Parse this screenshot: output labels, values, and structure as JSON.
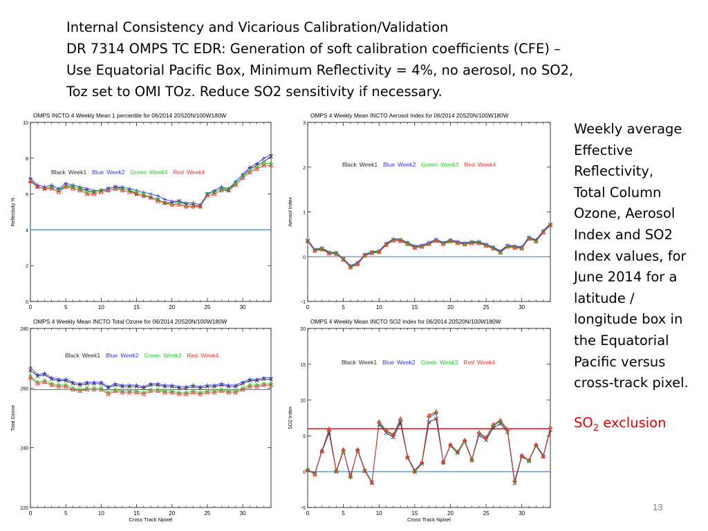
{
  "slide": {
    "title_lines": [
      "Internal Consistency and Vicarious Calibration/Validation",
      "DR 7314 OMPS TC EDR: Generation of soft calibration coefficients (CFE) –",
      "Use Equatorial Pacific Box, Minimum Reflectivity = 4%, no aerosol, no SO2,",
      "Toz set to OMI TOz. Reduce SO2 sensitivity if necessary."
    ],
    "side_lines": [
      "Weekly average",
      "Effective",
      "Reflectivity,",
      "Total Column",
      "Ozone, Aerosol",
      "Index and SO2",
      "Index values, for",
      "June 2014 for a",
      "latitude /",
      "longitude box in",
      "the Equatorial",
      "Pacific versus",
      "cross-track pixel."
    ],
    "so2_prefix": "SO",
    "so2_sub": "2",
    "so2_suffix": " exclusion",
    "page_number": "13"
  },
  "colors": {
    "week1": "#2a2a2a",
    "week2": "#3333ee",
    "week3": "#22cc22",
    "week4": "#ee3333",
    "axis": "#000000",
    "reference_blue": "#3a7ab8",
    "reference_red": "#e02020",
    "slide_red": "#e00000"
  },
  "chart_data": [
    {
      "type": "line",
      "title": "OMPS INCTO 4 Weekly Mean 1 percentile for 06/2014 20S20N/100W180W",
      "xlabel": "",
      "ylabel": "Reflectivity %",
      "xlim": [
        0,
        34
      ],
      "ylim": [
        0,
        10
      ],
      "xticks": [
        "0",
        "5",
        "10",
        "15",
        "20",
        "25",
        "30"
      ],
      "yticks": [
        "0",
        "2",
        "4",
        "6",
        "8",
        "10"
      ],
      "legend": [
        "Black",
        "Week1",
        "Blue",
        "Week2",
        "Green",
        "Week3",
        "Red",
        "Week4"
      ],
      "legend_placement": "top",
      "reference_line": {
        "y": 4,
        "color": "blue"
      },
      "x": [
        0,
        1,
        2,
        3,
        4,
        5,
        6,
        7,
        8,
        9,
        10,
        11,
        12,
        13,
        14,
        15,
        16,
        17,
        18,
        19,
        20,
        21,
        22,
        23,
        24,
        25,
        26,
        27,
        28,
        29,
        30,
        31,
        32,
        33,
        34
      ],
      "series": [
        {
          "values": [
            6.8,
            6.4,
            6.3,
            6.4,
            6.2,
            6.5,
            6.4,
            6.3,
            6.2,
            6.1,
            6.2,
            6.3,
            6.4,
            6.3,
            6.2,
            6.0,
            5.9,
            5.8,
            5.7,
            5.5,
            5.5,
            5.6,
            5.4,
            5.4,
            5.3,
            6.0,
            6.1,
            6.3,
            6.2,
            6.6,
            7.0,
            7.4,
            7.6,
            7.8,
            8.1
          ]
        },
        {
          "values": [
            6.9,
            6.5,
            6.4,
            6.5,
            6.3,
            6.6,
            6.5,
            6.4,
            6.3,
            6.2,
            6.2,
            6.3,
            6.4,
            6.4,
            6.3,
            6.2,
            6.1,
            6.0,
            5.9,
            5.7,
            5.6,
            5.6,
            5.5,
            5.5,
            5.4,
            6.0,
            6.2,
            6.4,
            6.3,
            6.7,
            7.1,
            7.5,
            7.7,
            8.0,
            8.2
          ]
        },
        {
          "values": [
            6.7,
            6.4,
            6.3,
            6.4,
            6.2,
            6.4,
            6.4,
            6.3,
            6.1,
            6.1,
            6.2,
            6.2,
            6.3,
            6.3,
            6.2,
            6.1,
            6.0,
            5.8,
            5.7,
            5.5,
            5.4,
            5.5,
            5.3,
            5.3,
            5.3,
            6.0,
            6.1,
            6.3,
            6.3,
            6.6,
            7.0,
            7.3,
            7.5,
            7.7,
            7.7
          ]
        },
        {
          "values": [
            6.7,
            6.4,
            6.3,
            6.3,
            6.1,
            6.4,
            6.3,
            6.2,
            6.0,
            6.0,
            6.1,
            6.2,
            6.3,
            6.2,
            6.1,
            6.0,
            5.9,
            5.8,
            5.6,
            5.5,
            5.4,
            5.4,
            5.3,
            5.3,
            5.3,
            5.9,
            6.0,
            6.2,
            6.2,
            6.5,
            6.9,
            7.2,
            7.4,
            7.6,
            7.6
          ]
        }
      ]
    },
    {
      "type": "line",
      "title": "OMPS 4 Weekly Mean INCTO Aerosol Index for 06/2014 20S20N/100W180W",
      "xlabel": "",
      "ylabel": "Aerosol Index",
      "xlim": [
        0,
        34
      ],
      "ylim": [
        -1,
        3
      ],
      "xticks": [
        "0",
        "5",
        "10",
        "15",
        "20",
        "25",
        "30"
      ],
      "yticks": [
        "-1",
        "0",
        "1",
        "2",
        "3"
      ],
      "legend": [
        "Black",
        "Week1",
        "Blue",
        "Week2",
        "Green",
        "Week3",
        "Red",
        "Week4"
      ],
      "legend_placement": "top",
      "reference_line": {
        "y": 0,
        "color": "blue"
      },
      "x": [
        0,
        1,
        2,
        3,
        4,
        5,
        6,
        7,
        8,
        9,
        10,
        11,
        12,
        13,
        14,
        15,
        16,
        17,
        18,
        19,
        20,
        21,
        22,
        23,
        24,
        25,
        26,
        27,
        28,
        29,
        30,
        31,
        32,
        33,
        34
      ],
      "series": [
        {
          "values": [
            0.36,
            0.15,
            0.18,
            0.09,
            0.08,
            -0.05,
            -0.22,
            -0.15,
            0.04,
            0.1,
            0.12,
            0.28,
            0.38,
            0.37,
            0.3,
            0.22,
            0.24,
            0.3,
            0.37,
            0.3,
            0.36,
            0.32,
            0.29,
            0.32,
            0.32,
            0.26,
            0.2,
            0.11,
            0.24,
            0.22,
            0.2,
            0.42,
            0.36,
            0.56,
            0.72
          ]
        },
        {
          "values": [
            0.38,
            0.16,
            0.2,
            0.1,
            0.09,
            -0.04,
            -0.2,
            -0.13,
            0.05,
            0.11,
            0.13,
            0.3,
            0.4,
            0.39,
            0.32,
            0.24,
            0.26,
            0.32,
            0.39,
            0.32,
            0.38,
            0.34,
            0.31,
            0.34,
            0.34,
            0.28,
            0.22,
            0.13,
            0.26,
            0.24,
            0.22,
            0.44,
            0.38,
            0.58,
            0.74
          ]
        },
        {
          "values": [
            0.35,
            0.14,
            0.17,
            0.08,
            0.07,
            -0.06,
            -0.23,
            -0.16,
            0.03,
            0.09,
            0.11,
            0.27,
            0.37,
            0.36,
            0.29,
            0.21,
            0.23,
            0.29,
            0.36,
            0.29,
            0.35,
            0.31,
            0.28,
            0.31,
            0.31,
            0.25,
            0.19,
            0.1,
            0.23,
            0.21,
            0.19,
            0.41,
            0.35,
            0.55,
            0.71
          ]
        },
        {
          "values": [
            0.34,
            0.13,
            0.16,
            0.07,
            0.06,
            -0.07,
            -0.24,
            -0.17,
            0.02,
            0.08,
            0.1,
            0.26,
            0.36,
            0.35,
            0.28,
            0.2,
            0.22,
            0.28,
            0.35,
            0.28,
            0.34,
            0.3,
            0.27,
            0.3,
            0.3,
            0.24,
            0.18,
            0.09,
            0.22,
            0.2,
            0.18,
            0.4,
            0.34,
            0.54,
            0.7
          ]
        }
      ]
    },
    {
      "type": "line",
      "title": "OMPS 4 Weekly Mean INCTO Total Ozone for 06/2014 20S20N/100W180W",
      "xlabel": "Cross Track Npixel",
      "ylabel": "Total Ozone",
      "xlim": [
        0,
        34
      ],
      "ylim": [
        220,
        280
      ],
      "xticks": [
        "0",
        "5",
        "10",
        "15",
        "20",
        "25",
        "30"
      ],
      "yticks": [
        "220",
        "240",
        "260",
        "280"
      ],
      "legend": [
        "Black",
        "Week1",
        "Blue",
        "Week2",
        "Green",
        "Week3",
        "Red",
        "Week4"
      ],
      "legend_placement": "top",
      "reference_line": {
        "y": 259.5,
        "color": "blue"
      },
      "x": [
        0,
        1,
        2,
        3,
        4,
        5,
        6,
        7,
        8,
        9,
        10,
        11,
        12,
        13,
        14,
        15,
        16,
        17,
        18,
        19,
        20,
        21,
        22,
        23,
        24,
        25,
        26,
        27,
        28,
        29,
        30,
        31,
        32,
        33,
        34
      ],
      "series": [
        {
          "values": [
            266,
            264,
            264.5,
            263,
            262.5,
            262.5,
            261.5,
            261,
            261.5,
            261.5,
            261.5,
            260,
            261,
            260.5,
            260.5,
            260.5,
            260,
            261,
            261,
            260.5,
            260.5,
            260,
            260,
            260.5,
            260,
            260.5,
            260.5,
            261,
            260.5,
            260.5,
            261.5,
            262.5,
            262.5,
            263,
            263
          ]
        },
        {
          "values": [
            267,
            264.5,
            265,
            263.5,
            263,
            263,
            262,
            261.5,
            262,
            262,
            262,
            260.5,
            261.5,
            261,
            261,
            261,
            260.5,
            261.5,
            261.5,
            261,
            261,
            260.5,
            260.5,
            261,
            260.5,
            261,
            261,
            261.5,
            261,
            261,
            262,
            263,
            263,
            263.5,
            263.5
          ]
        },
        {
          "values": [
            264,
            262,
            262.5,
            261.5,
            261,
            261,
            260,
            259.5,
            260,
            260,
            260,
            258.5,
            259.5,
            259,
            259,
            259,
            258.5,
            259.5,
            259.5,
            259,
            259,
            258.5,
            258.5,
            259,
            258.5,
            259,
            259,
            259.5,
            259,
            259,
            260,
            261,
            261,
            261.5,
            261.5
          ]
        },
        {
          "values": [
            263.5,
            261.5,
            262,
            261,
            260.5,
            260.5,
            259.5,
            259,
            259.5,
            259.5,
            259.5,
            258,
            259,
            258.5,
            258.5,
            258.5,
            258,
            259,
            259,
            258.5,
            258.5,
            258,
            258,
            258.5,
            258,
            258.5,
            258.5,
            259,
            258.5,
            258.5,
            259.5,
            260.5,
            260.5,
            261,
            261
          ]
        }
      ]
    },
    {
      "type": "line",
      "title": "OMPS 4 Weekly Mean INCTO SO2 Index for 06/2014 20S20N/100W180W",
      "xlabel": "Cross Track Npixel",
      "ylabel": "SO2 Index",
      "xlim": [
        0,
        34
      ],
      "ylim": [
        -5,
        20
      ],
      "xticks": [
        "0",
        "5",
        "10",
        "15",
        "20",
        "25",
        "30"
      ],
      "yticks": [
        "-5",
        "0",
        "5",
        "10",
        "15",
        "20"
      ],
      "legend": [
        "Black",
        "Week1",
        "Blue",
        "Week2",
        "Green",
        "Week3",
        "Red",
        "Week4"
      ],
      "legend_placement": "top",
      "reference_lines": [
        {
          "y": 0,
          "color": "blue"
        },
        {
          "y": 6,
          "color": "red"
        }
      ],
      "x": [
        0,
        1,
        2,
        3,
        4,
        5,
        6,
        7,
        8,
        9,
        10,
        11,
        12,
        13,
        14,
        15,
        16,
        17,
        18,
        19,
        20,
        21,
        22,
        23,
        24,
        25,
        26,
        27,
        28,
        29,
        30,
        31,
        32,
        33,
        34
      ],
      "series": [
        {
          "values": [
            0.2,
            -0.3,
            2.8,
            5.4,
            0,
            2.8,
            -0.5,
            2.9,
            0.1,
            -1.5,
            6.6,
            5.4,
            4.8,
            6.8,
            1.9,
            0,
            1.1,
            6.9,
            7.4,
            1.3,
            3.6,
            2.6,
            4.2,
            1.6,
            5.1,
            4.4,
            6.1,
            6.7,
            5.5,
            -1.6,
            2.1,
            1.5,
            3.6,
            2.1,
            5.8
          ]
        },
        {
          "values": [
            0.3,
            -0.2,
            3.0,
            5.7,
            0.1,
            3.0,
            -0.9,
            3.1,
            0.3,
            -1.4,
            6.8,
            5.6,
            5.0,
            7.1,
            2.1,
            0.2,
            1.3,
            7.6,
            8.1,
            1.4,
            3.8,
            2.8,
            4.4,
            1.8,
            5.3,
            4.6,
            6.4,
            7.0,
            5.7,
            -1.4,
            2.3,
            1.6,
            3.8,
            2.3,
            6.0
          ]
        },
        {
          "values": [
            0.3,
            -0.3,
            2.9,
            5.9,
            0.2,
            2.9,
            -0.6,
            3.0,
            0.2,
            -1.5,
            6.9,
            5.7,
            5.1,
            7.3,
            2.0,
            0.1,
            1.2,
            7.8,
            8.3,
            1.2,
            3.7,
            2.7,
            4.3,
            1.7,
            5.4,
            4.7,
            6.5,
            7.1,
            5.8,
            -1.3,
            2.2,
            1.5,
            3.7,
            2.2,
            6.1
          ]
        },
        {
          "values": [
            0.2,
            -0.4,
            2.9,
            6.0,
            0.1,
            3.1,
            -0.7,
            3.1,
            0.1,
            -1.6,
            7.0,
            5.8,
            5.2,
            7.4,
            2.1,
            0.0,
            1.3,
            7.9,
            8.4,
            1.3,
            3.8,
            2.8,
            4.4,
            1.6,
            5.5,
            4.8,
            6.6,
            7.2,
            5.9,
            -1.2,
            2.3,
            1.6,
            3.8,
            2.1,
            6.2
          ]
        }
      ]
    }
  ]
}
